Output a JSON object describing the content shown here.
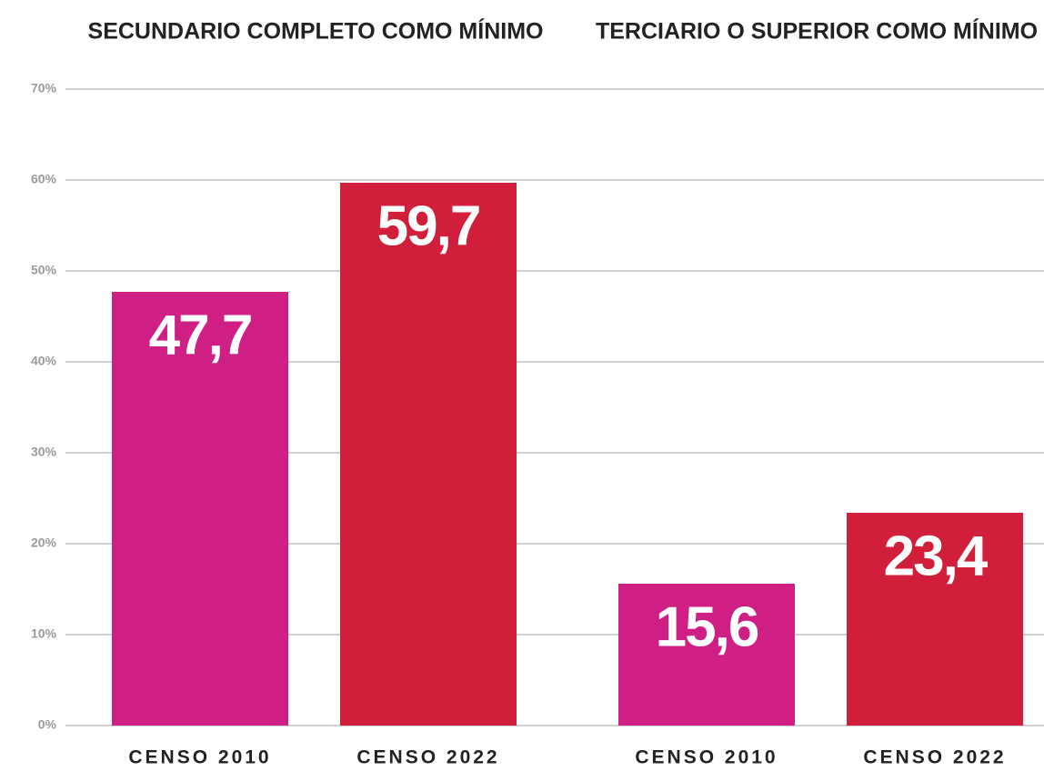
{
  "chart_data": [
    {
      "type": "bar",
      "title": "SECUNDARIO COMPLETO COMO MÍNIMO",
      "categories": [
        "CENSO 2010",
        "CENSO 2022"
      ],
      "values": [
        47.7,
        59.7
      ],
      "value_labels": [
        "47,7",
        "59,7"
      ],
      "colors": [
        "#d01f84",
        "#d11e3a"
      ],
      "ylim": [
        0,
        70
      ],
      "yticks": [
        {
          "value": 0,
          "label": "0%"
        },
        {
          "value": 10,
          "label": "10%"
        },
        {
          "value": 20,
          "label": "20%"
        },
        {
          "value": 30,
          "label": "30%"
        },
        {
          "value": 40,
          "label": "40%"
        },
        {
          "value": 50,
          "label": "50%"
        },
        {
          "value": 60,
          "label": "60%"
        },
        {
          "value": 70,
          "label": "70%"
        }
      ],
      "grid": true
    },
    {
      "type": "bar",
      "title": "TERCIARIO O SUPERIOR COMO MÍNIMO",
      "categories": [
        "CENSO 2010",
        "CENSO 2022"
      ],
      "values": [
        15.6,
        23.4
      ],
      "value_labels": [
        "15,6",
        "23,4"
      ],
      "colors": [
        "#d01f84",
        "#d11e3a"
      ],
      "ylim": [
        0,
        70
      ]
    }
  ]
}
